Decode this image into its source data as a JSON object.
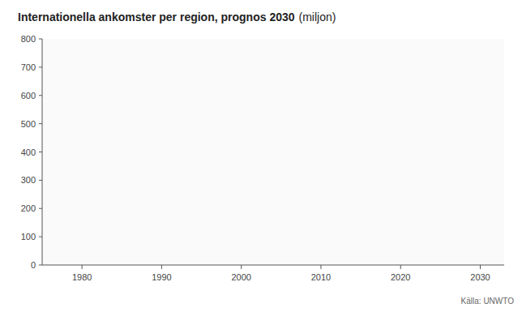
{
  "chart_data": {
    "type": "line",
    "title": "Internationella ankomster per region, prognos 2030",
    "subtitle": "(miljon)",
    "source": "Källa: UNWTO",
    "xlim": [
      1975,
      2033
    ],
    "ylim": [
      0,
      800
    ],
    "xticks": [
      1980,
      1990,
      2000,
      2010,
      2020,
      2030
    ],
    "yticks": [
      0,
      100,
      200,
      300,
      400,
      500,
      600,
      700,
      800
    ],
    "grid": false
  }
}
